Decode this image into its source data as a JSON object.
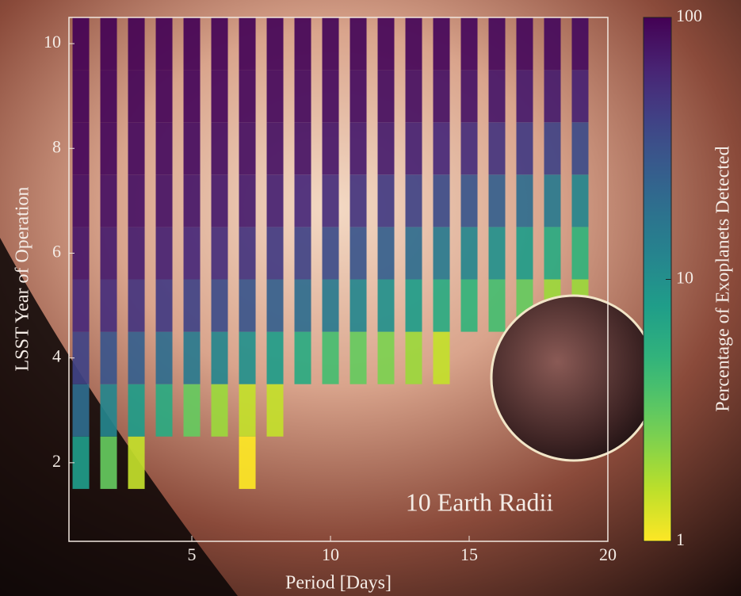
{
  "chart_data": {
    "type": "heatmap",
    "x_label": "Period [Days]",
    "y_label": "LSST Year of Operation",
    "annotation": "10 Earth Radii",
    "colorbar_label": "Percentage of Exoplanets Detected",
    "colormap": "viridis_r",
    "color_log": true,
    "clim": [
      1,
      100
    ],
    "cticks": [
      1,
      10,
      100
    ],
    "xlim": [
      0.57,
      20
    ],
    "xticks": [
      5,
      10,
      15,
      20
    ],
    "ylim": [
      0.5,
      10.5
    ],
    "yticks": [
      2,
      4,
      6,
      8,
      10
    ],
    "x": [
      1,
      2,
      3,
      4,
      5,
      6,
      7,
      8,
      9,
      10,
      11,
      12,
      13,
      14,
      15,
      16,
      17,
      18,
      19
    ],
    "y": [
      1,
      2,
      3,
      4,
      5,
      6,
      7,
      8,
      9,
      10
    ],
    "values": [
      [
        null,
        8,
        20,
        40,
        60,
        75,
        85,
        92,
        96,
        99
      ],
      [
        null,
        3,
        12,
        30,
        55,
        70,
        82,
        90,
        95,
        98
      ],
      [
        null,
        1.5,
        8,
        25,
        50,
        68,
        80,
        88,
        94,
        98
      ],
      [
        null,
        null,
        6,
        20,
        45,
        65,
        78,
        87,
        93,
        97
      ],
      [
        null,
        null,
        3,
        15,
        40,
        60,
        75,
        85,
        92,
        97
      ],
      [
        null,
        null,
        2,
        12,
        35,
        55,
        72,
        83,
        91,
        96
      ],
      [
        null,
        1,
        1.5,
        10,
        30,
        50,
        70,
        82,
        90,
        96
      ],
      [
        null,
        null,
        1.5,
        8,
        25,
        45,
        65,
        80,
        89,
        95
      ],
      [
        null,
        null,
        null,
        6,
        20,
        40,
        60,
        78,
        88,
        95
      ],
      [
        null,
        null,
        null,
        4,
        15,
        35,
        55,
        75,
        87,
        94
      ],
      [
        null,
        null,
        null,
        3,
        12,
        30,
        50,
        72,
        85,
        94
      ],
      [
        null,
        null,
        null,
        2.5,
        10,
        25,
        45,
        70,
        84,
        93
      ],
      [
        null,
        null,
        null,
        2,
        8,
        20,
        40,
        65,
        82,
        93
      ],
      [
        null,
        null,
        null,
        1.5,
        6,
        15,
        35,
        60,
        80,
        92
      ],
      [
        null,
        null,
        null,
        null,
        5,
        12,
        30,
        55,
        78,
        91
      ],
      [
        null,
        null,
        null,
        null,
        4,
        10,
        25,
        50,
        75,
        90
      ],
      [
        null,
        null,
        null,
        null,
        3,
        8,
        20,
        45,
        72,
        90
      ],
      [
        null,
        null,
        null,
        1,
        2,
        6,
        15,
        40,
        70,
        89
      ],
      [
        null,
        null,
        null,
        1,
        2,
        5,
        12,
        35,
        65,
        88
      ]
    ]
  }
}
